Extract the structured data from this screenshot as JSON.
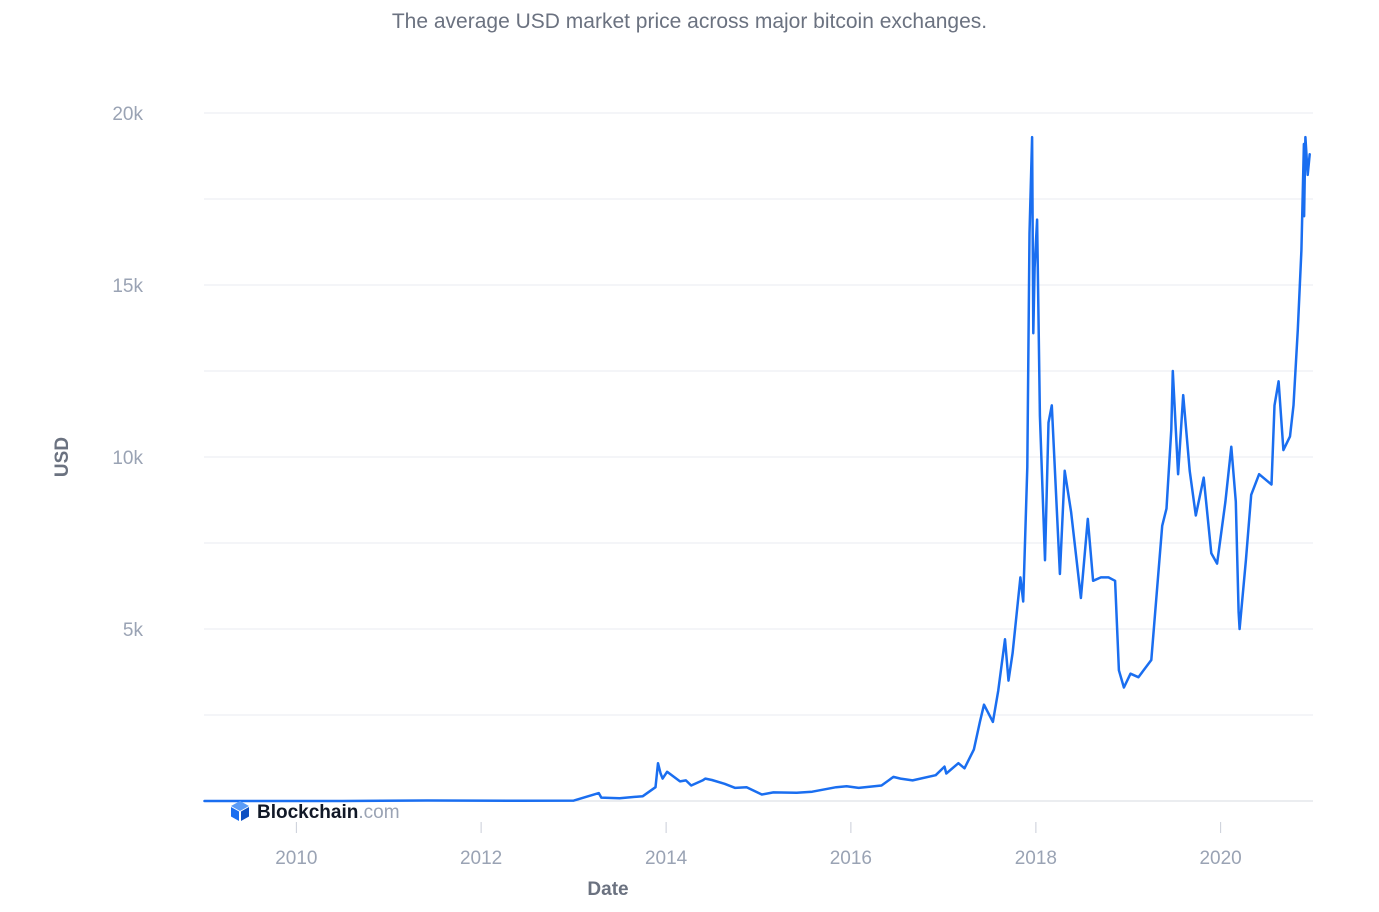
{
  "chart_data": {
    "type": "line",
    "title": "",
    "subtitle": "The average USD market price across major bitcoin exchanges.",
    "xlabel": "Date",
    "ylabel": "USD",
    "ylim": [
      0,
      20000
    ],
    "xlim": [
      "2009-01-01",
      "2020-12-31"
    ],
    "y_ticks": [
      5000,
      10000,
      15000,
      20000
    ],
    "y_tick_labels": [
      "5k",
      "10k",
      "15k",
      "20k"
    ],
    "x_ticks": [
      "2010",
      "2012",
      "2014",
      "2016",
      "2018",
      "2020"
    ],
    "grid": true,
    "line_color": "#1a6ef0",
    "series": [
      {
        "x": [
          "2009-01-03",
          "2010-07-01",
          "2011-06-01",
          "2012-06-01",
          "2013-01-01",
          "2013-04-10",
          "2013-04-20",
          "2013-07-01",
          "2013-10-01",
          "2013-11-20",
          "2013-11-30",
          "2013-12-10",
          "2013-12-18",
          "2014-01-05",
          "2014-02-25",
          "2014-03-20",
          "2014-04-10",
          "2014-05-25",
          "2014-06-05",
          "2014-07-01",
          "2014-08-20",
          "2014-10-01",
          "2014-11-15",
          "2015-01-14",
          "2015-03-01",
          "2015-06-01",
          "2015-08-01",
          "2015-11-04",
          "2015-12-15",
          "2016-02-01",
          "2016-05-01",
          "2016-06-17",
          "2016-07-15",
          "2016-09-01",
          "2016-12-01",
          "2017-01-05",
          "2017-01-12",
          "2017-03-01",
          "2017-03-25",
          "2017-05-01",
          "2017-05-25",
          "2017-06-10",
          "2017-07-15",
          "2017-08-05",
          "2017-09-01",
          "2017-09-15",
          "2017-10-01",
          "2017-11-01",
          "2017-11-12",
          "2017-11-28",
          "2017-12-07",
          "2017-12-17",
          "2017-12-22",
          "2017-12-27",
          "2018-01-06",
          "2018-01-17",
          "2018-02-06",
          "2018-02-20",
          "2018-03-05",
          "2018-04-06",
          "2018-04-25",
          "2018-05-20",
          "2018-06-28",
          "2018-07-25",
          "2018-08-15",
          "2018-09-15",
          "2018-10-15",
          "2018-11-10",
          "2018-11-25",
          "2018-12-15",
          "2019-01-10",
          "2019-02-10",
          "2019-04-02",
          "2019-05-15",
          "2019-06-01",
          "2019-06-20",
          "2019-06-26",
          "2019-07-17",
          "2019-08-06",
          "2019-09-01",
          "2019-09-25",
          "2019-10-26",
          "2019-11-25",
          "2019-12-18",
          "2020-01-20",
          "2020-02-12",
          "2020-03-01",
          "2020-03-12",
          "2020-03-16",
          "2020-04-10",
          "2020-05-01",
          "2020-06-01",
          "2020-07-20",
          "2020-08-01",
          "2020-08-17",
          "2020-09-05",
          "2020-10-01",
          "2020-10-15",
          "2020-11-01",
          "2020-11-15",
          "2020-11-25",
          "2020-11-26",
          "2020-12-01",
          "2020-12-10",
          "2020-12-18"
        ],
        "y": [
          0,
          0,
          15,
          6,
          13,
          230,
          100,
          80,
          140,
          400,
          1100,
          800,
          650,
          850,
          570,
          600,
          450,
          600,
          650,
          610,
          500,
          380,
          400,
          190,
          250,
          240,
          270,
          400,
          430,
          380,
          450,
          700,
          650,
          600,
          750,
          1000,
          800,
          1100,
          950,
          1500,
          2300,
          2800,
          2300,
          3200,
          4700,
          3500,
          4300,
          6500,
          5800,
          9700,
          16500,
          19300,
          13600,
          15500,
          16900,
          11200,
          7000,
          11000,
          11500,
          6600,
          9600,
          8400,
          5900,
          8200,
          6400,
          6500,
          6500,
          6400,
          3800,
          3300,
          3700,
          3600,
          4100,
          8000,
          8500,
          10800,
          12500,
          9500,
          11800,
          9600,
          8300,
          9400,
          7200,
          6900,
          8700,
          10300,
          8700,
          5500,
          5000,
          7000,
          8900,
          9500,
          9200,
          11500,
          12200,
          10200,
          10600,
          11500,
          13700,
          16000,
          19100,
          17000,
          19300,
          18200,
          18800
        ]
      }
    ],
    "branding": {
      "name": "Blockchain",
      "suffix": ".com"
    }
  }
}
